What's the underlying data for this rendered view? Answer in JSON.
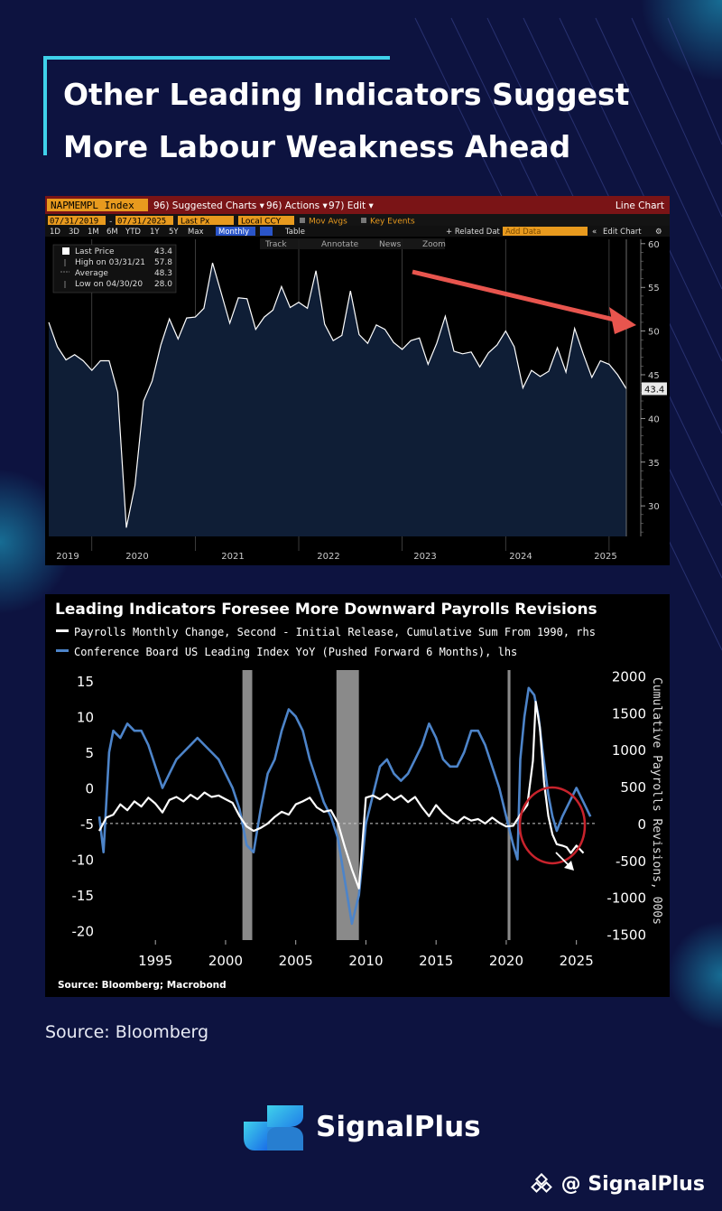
{
  "page": {
    "title_line1": "Other Leading Indicators Suggest",
    "title_line2": "More Labour Weakness Ahead",
    "source": "Source: Bloomberg",
    "brand": "SignalPlus",
    "watermark": "@ SignalPlus",
    "colors": {
      "background": "#0d1340",
      "accent": "#3fd1ea",
      "brand_gradient_start": "#3fd1ea",
      "brand_gradient_end": "#1a6ee8"
    }
  },
  "terminal": {
    "ticker": "NAPMEMPL Index",
    "menu": [
      "96) Suggested Charts ▾",
      "96) Actions ▾",
      "97) Edit ▾"
    ],
    "chart_type": "Line Chart",
    "start_date": "07/31/2019",
    "end_date": "07/31/2025",
    "field": "Last Px",
    "currency": "Local CCY",
    "mov_avgs": "Mov Avgs",
    "key_events": "Key Events",
    "periods": [
      "1D",
      "3D",
      "1M",
      "6M",
      "YTD",
      "1Y",
      "5Y",
      "Max"
    ],
    "frequency": "Monthly",
    "table": "Table",
    "related_data": "+ Related Dat",
    "add_data": "Add Data",
    "edit_chart": "Edit Chart",
    "tools": [
      "Track",
      "Annotate",
      "News",
      "Zoom"
    ],
    "legend": [
      {
        "label": "Last Price",
        "value": "43.4"
      },
      {
        "label": "High on 03/31/21",
        "value": "57.8"
      },
      {
        "label": "Average",
        "value": "48.3"
      },
      {
        "label": "Low on 04/30/20",
        "value": "28.0"
      }
    ],
    "last_value_tag": "43.4"
  },
  "chart_data": [
    {
      "type": "area",
      "title": "",
      "series": [
        {
          "name": "NAPMEMPL Index",
          "values": [
            51.0,
            48.2,
            46.7,
            47.3,
            46.6,
            45.5,
            46.6,
            46.6,
            43.0,
            27.5,
            32.3,
            42.0,
            44.3,
            48.4,
            51.4,
            49.1,
            51.5,
            51.6,
            52.6,
            57.8,
            54.4,
            50.9,
            53.8,
            53.7,
            50.2,
            51.6,
            52.4,
            55.1,
            52.7,
            53.3,
            52.6,
            56.9,
            50.8,
            48.9,
            49.5,
            54.6,
            49.6,
            48.6,
            50.7,
            50.2,
            48.7,
            47.9,
            48.9,
            49.2,
            46.2,
            48.6,
            51.7,
            47.7,
            47.4,
            47.6,
            45.9,
            47.5,
            48.4,
            50.0,
            48.2,
            43.5,
            45.5,
            44.8,
            45.4,
            48.1,
            45.3,
            50.3,
            47.4,
            44.7,
            46.6,
            46.2,
            45.0,
            43.4
          ]
        }
      ],
      "x_labels": [
        "2019",
        "2020",
        "2021",
        "2022",
        "2023",
        "2024",
        "2025"
      ],
      "y_ticks": [
        30,
        35,
        40,
        45,
        50,
        55,
        60
      ],
      "ylim": [
        26.5,
        60.5
      ],
      "xrange": [
        "2019-07",
        "2025-07"
      ],
      "annotation": "red arrow trending down",
      "colors": {
        "line": "#ffffff",
        "fill": "#0f1e36",
        "arrow": "#e8554e"
      }
    },
    {
      "type": "line",
      "title": "Leading Indicators Foresee More Downward Payrolls Revisions",
      "subtitle_series": [
        "Payrolls Monthly Change, Second - Initial Release, Cumulative Sum From 1990, rhs",
        "Conference Board US Leading Index YoY (Pushed Forward 6 Months), lhs"
      ],
      "source": "Source: Bloomberg; Macrobond",
      "x_ticks": [
        1995,
        2000,
        2005,
        2010,
        2015,
        2020,
        2025
      ],
      "xlim": [
        1991,
        2026.5
      ],
      "left_axis": {
        "ticks": [
          15,
          10,
          5,
          0,
          -5,
          -10,
          -15,
          -20
        ],
        "ylim": [
          -21.3,
          16.5
        ]
      },
      "right_axis": {
        "label": "Cumulative Payrolls Revisions, 000s",
        "ticks": [
          2000,
          1500,
          1000,
          500,
          0,
          -500,
          -1000,
          -1500
        ],
        "ylim": [
          -1580,
          2080
        ]
      },
      "recessions": [
        [
          2001.2,
          2001.9
        ],
        [
          2007.9,
          2009.5
        ],
        [
          2020.1,
          2020.3
        ]
      ],
      "series": [
        {
          "name": "Conference Board US Leading Index YoY (Pushed Forward 6 Months), lhs",
          "axis": "left",
          "color": "#4d84c9",
          "x": [
            1991.0,
            1991.3,
            1991.7,
            1992.0,
            1992.5,
            1993.0,
            1993.5,
            1994.0,
            1994.5,
            1995.0,
            1995.5,
            1996.0,
            1996.5,
            1997.0,
            1997.5,
            1998.0,
            1998.5,
            1999.0,
            1999.5,
            2000.0,
            2000.5,
            2001.0,
            2001.5,
            2002.0,
            2002.5,
            2003.0,
            2003.5,
            2004.0,
            2004.5,
            2005.0,
            2005.5,
            2006.0,
            2006.5,
            2007.0,
            2007.5,
            2008.0,
            2008.5,
            2009.0,
            2009.5,
            2010.0,
            2010.5,
            2011.0,
            2011.5,
            2012.0,
            2012.5,
            2013.0,
            2013.5,
            2014.0,
            2014.5,
            2015.0,
            2015.5,
            2016.0,
            2016.5,
            2017.0,
            2017.5,
            2018.0,
            2018.5,
            2019.0,
            2019.5,
            2020.0,
            2020.5,
            2020.8,
            2021.0,
            2021.3,
            2021.6,
            2022.0,
            2022.3,
            2022.6,
            2023.0,
            2023.3,
            2023.6,
            2024.0,
            2024.5,
            2025.0,
            2025.5,
            2026.0
          ],
          "values": [
            -4,
            -9,
            5,
            8,
            7,
            9,
            8,
            8,
            6,
            3,
            0,
            2,
            4,
            5,
            6,
            7,
            6,
            5,
            4,
            2,
            0,
            -3,
            -8,
            -9,
            -3,
            2,
            4,
            8,
            11,
            10,
            8,
            4,
            1,
            -2,
            -4,
            -7,
            -13,
            -19,
            -15,
            -5,
            -1,
            3,
            4,
            2,
            1,
            2,
            4,
            6,
            9,
            7,
            4,
            3,
            3,
            5,
            8,
            8,
            6,
            3,
            0,
            -4,
            -8,
            -10,
            4,
            10,
            14,
            13,
            10,
            5,
            -1,
            -4,
            -6,
            -4,
            -2,
            0,
            -2,
            -4
          ]
        },
        {
          "name": "Payrolls Monthly Change, Second - Initial Release, Cumulative Sum From 1990, rhs",
          "axis": "right",
          "color": "#ffffff",
          "x": [
            1991.0,
            1991.5,
            1992.0,
            1992.5,
            1993.0,
            1993.5,
            1994.0,
            1994.5,
            1995.0,
            1995.5,
            1996.0,
            1996.5,
            1997.0,
            1997.5,
            1998.0,
            1998.5,
            1999.0,
            1999.5,
            2000.0,
            2000.5,
            2001.0,
            2001.5,
            2002.0,
            2002.5,
            2003.0,
            2003.5,
            2004.0,
            2004.5,
            2005.0,
            2005.5,
            2006.0,
            2006.5,
            2007.0,
            2007.5,
            2008.0,
            2008.5,
            2009.0,
            2009.5,
            2010.0,
            2010.5,
            2011.0,
            2011.5,
            2012.0,
            2012.5,
            2013.0,
            2013.5,
            2014.0,
            2014.5,
            2015.0,
            2015.5,
            2016.0,
            2016.5,
            2017.0,
            2017.5,
            2018.0,
            2018.5,
            2019.0,
            2019.5,
            2020.0,
            2020.5,
            2021.0,
            2021.5,
            2021.9,
            2022.1,
            2022.4,
            2022.7,
            2023.0,
            2023.3,
            2023.6,
            2024.0,
            2024.3,
            2024.6,
            2025.0,
            2025.5
          ],
          "values": [
            -100,
            80,
            120,
            260,
            180,
            300,
            230,
            350,
            270,
            150,
            320,
            360,
            300,
            390,
            330,
            420,
            360,
            380,
            330,
            280,
            100,
            -40,
            -100,
            -60,
            0,
            90,
            160,
            120,
            260,
            300,
            350,
            220,
            160,
            180,
            10,
            -320,
            -620,
            -880,
            350,
            380,
            330,
            400,
            320,
            380,
            290,
            360,
            220,
            100,
            250,
            140,
            60,
            10,
            90,
            40,
            60,
            0,
            80,
            10,
            -40,
            -30,
            120,
            250,
            850,
            1650,
            1300,
            550,
            100,
            -150,
            -280,
            -300,
            -320,
            -400,
            -300,
            -400
          ]
        }
      ],
      "annotation": "red ellipse with white arrow",
      "colors": {
        "recession": "#8a8a8a",
        "circle": "#c8232c"
      }
    }
  ]
}
